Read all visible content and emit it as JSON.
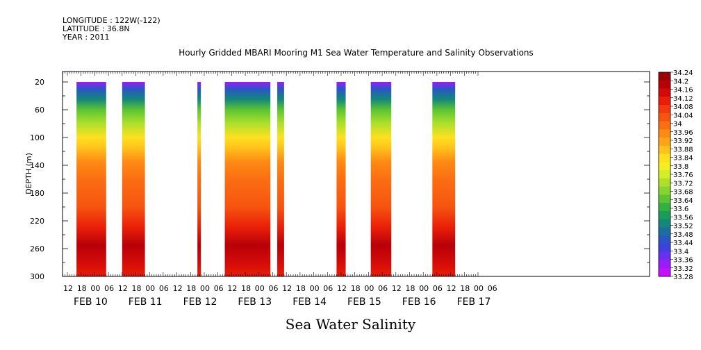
{
  "header": {
    "longitude": "LONGITUDE : 122W(-122)",
    "latitude": "LATITUDE : 36.8N",
    "year": "YEAR : 2011",
    "title": "Hourly Gridded MBARI Mooring M1 Sea Water Temperature and Salinity Observations"
  },
  "caption": "Sea Water Salinity",
  "chart_data": {
    "type": "heatmap",
    "variable": "Sea Water Salinity",
    "ylabel": "DEPTH (m)",
    "xlabel": "",
    "y_range": [
      300,
      0
    ],
    "y_ticks": [
      20,
      60,
      100,
      140,
      180,
      220,
      260,
      300
    ],
    "x_range_hours": [
      0,
      180
    ],
    "hour_ticks": [
      "12",
      "18",
      "00",
      "06",
      "12",
      "18",
      "00",
      "06",
      "12",
      "18",
      "00",
      "06",
      "12",
      "18",
      "00",
      "06",
      "12",
      "18",
      "00",
      "06",
      "12",
      "18",
      "00",
      "06",
      "12",
      "18",
      "00",
      "06",
      "12",
      "18",
      "00",
      "06"
    ],
    "date_labels": [
      "FEB 10",
      "FEB 11",
      "FEB 12",
      "FEB 13",
      "FEB 14",
      "FEB 15",
      "FEB 16",
      "FEB 17"
    ],
    "data_segments": [
      {
        "start": "FEB 10 16:00",
        "end": "FEB 11 05:00"
      },
      {
        "start": "FEB 11 12:00",
        "end": "FEB 11 22:00"
      },
      {
        "start": "FEB 12 21:00",
        "end": "FEB 12 22:00"
      },
      {
        "start": "FEB 13 09:00",
        "end": "FEB 14 05:00"
      },
      {
        "start": "FEB 14 08:00",
        "end": "FEB 14 11:00"
      },
      {
        "start": "FEB 15 10:00",
        "end": "FEB 15 14:00"
      },
      {
        "start": "FEB 16 01:00",
        "end": "FEB 16 10:00"
      },
      {
        "start": "FEB 17 04:00",
        "end": "FEB 17 14:00"
      }
    ],
    "profile": [
      {
        "depth": 20,
        "salinity": 33.32
      },
      {
        "depth": 30,
        "salinity": 33.46
      },
      {
        "depth": 45,
        "salinity": 33.55
      },
      {
        "depth": 60,
        "salinity": 33.64
      },
      {
        "depth": 80,
        "salinity": 33.74
      },
      {
        "depth": 100,
        "salinity": 33.84
      },
      {
        "depth": 115,
        "salinity": 33.9
      },
      {
        "depth": 135,
        "salinity": 33.96
      },
      {
        "depth": 160,
        "salinity": 34.02
      },
      {
        "depth": 200,
        "salinity": 34.05
      },
      {
        "depth": 230,
        "salinity": 34.14
      },
      {
        "depth": 255,
        "salinity": 34.22
      },
      {
        "depth": 280,
        "salinity": 34.18
      },
      {
        "depth": 300,
        "salinity": 34.14
      }
    ],
    "colorbar": {
      "levels": [
        34.24,
        34.2,
        34.16,
        34.12,
        34.08,
        34.04,
        34,
        33.96,
        33.92,
        33.88,
        33.84,
        33.8,
        33.76,
        33.72,
        33.68,
        33.64,
        33.6,
        33.56,
        33.52,
        33.48,
        33.44,
        33.4,
        33.36,
        33.32,
        33.28
      ],
      "level_labels": [
        "34.24",
        "34.2",
        "34.16",
        "34.12",
        "34.08",
        "34.04",
        "34",
        "33.96",
        "33.92",
        "33.88",
        "33.84",
        "33.8",
        "33.76",
        "33.72",
        "33.68",
        "33.64",
        "33.6",
        "33.56",
        "33.52",
        "33.48",
        "33.44",
        "33.4",
        "33.36",
        "33.32",
        "33.28"
      ],
      "colors": [
        "#9e0008",
        "#b80008",
        "#d40a08",
        "#e81e08",
        "#f23a0c",
        "#f75410",
        "#fb6e12",
        "#fd8a14",
        "#ffa418",
        "#ffc21c",
        "#ffe020",
        "#f2ee22",
        "#d2ee26",
        "#aee02a",
        "#88d42e",
        "#5cc432",
        "#34b040",
        "#1a9c5a",
        "#14887a",
        "#1a6f9e",
        "#2a56c4",
        "#4040e0",
        "#6a30f0",
        "#9a1cfa",
        "#c410ff"
      ]
    }
  }
}
